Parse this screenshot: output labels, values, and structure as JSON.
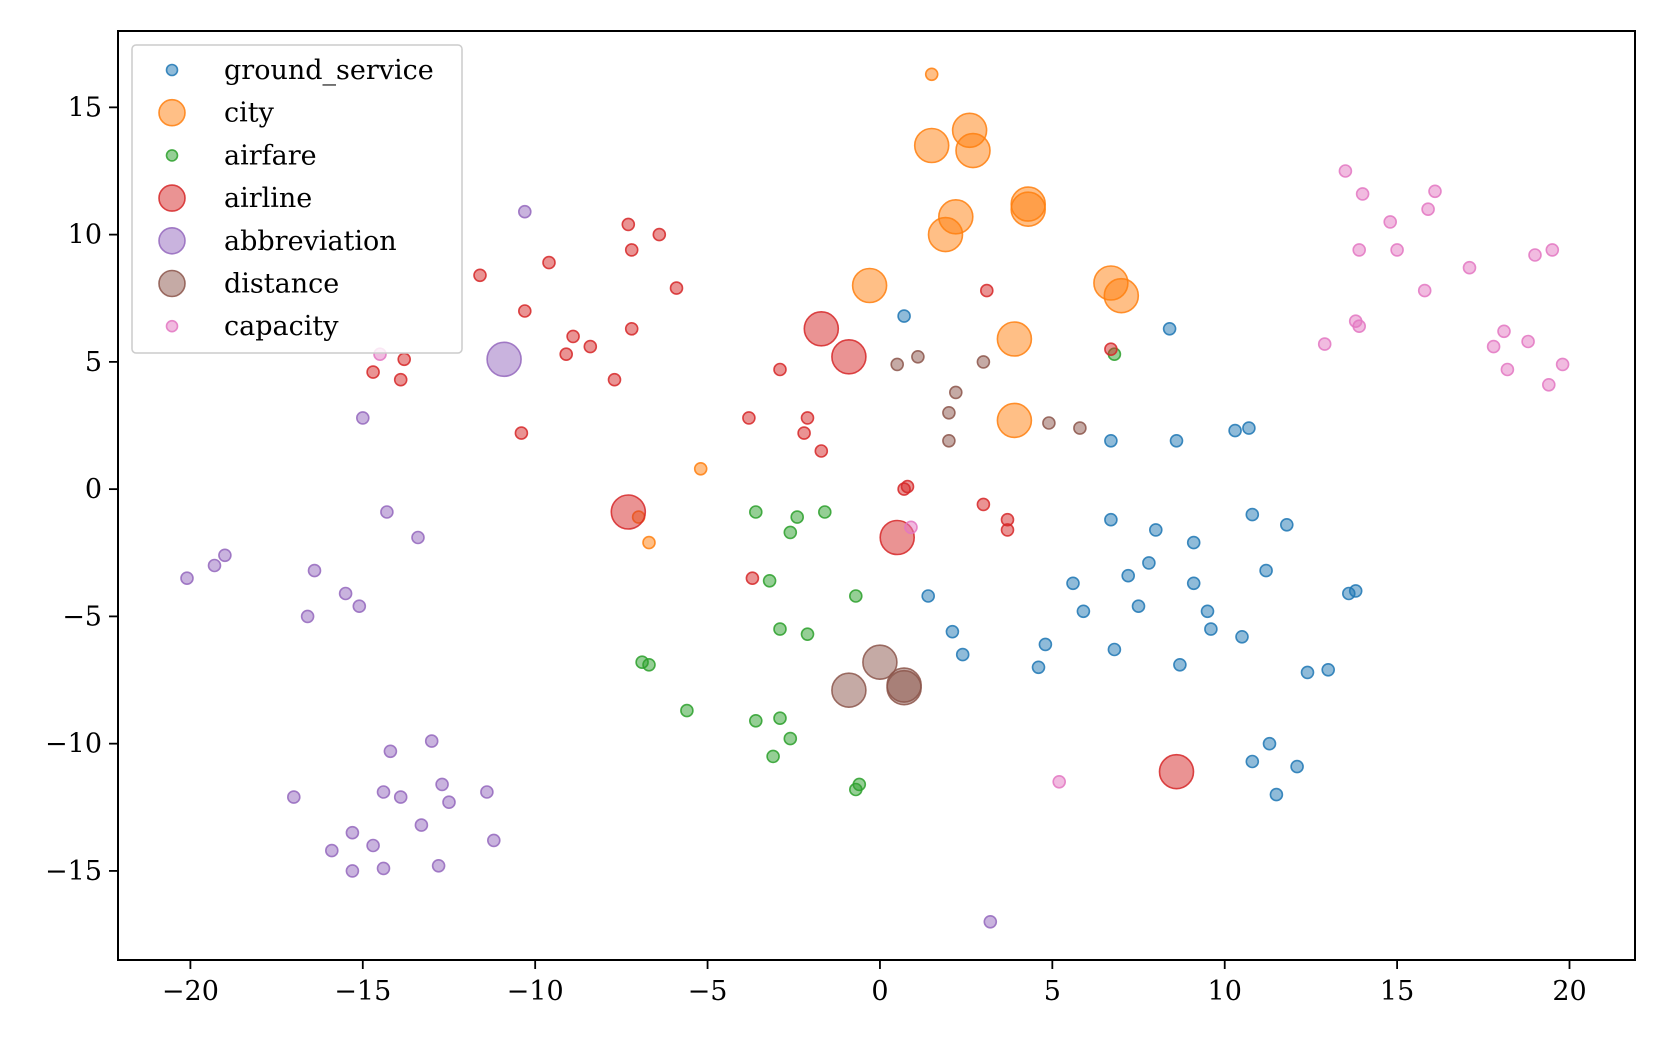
{
  "chart_data": {
    "type": "scatter",
    "xlim": [
      -22.1,
      21.9
    ],
    "ylim": [
      -18.5,
      18.0
    ],
    "x_ticks": [
      -20,
      -15,
      -10,
      -5,
      0,
      5,
      10,
      15,
      20
    ],
    "y_ticks": [
      -15,
      -10,
      -5,
      0,
      5,
      10,
      15
    ],
    "x_tick_labels": [
      "−20",
      "−15",
      "−10",
      "−5",
      "0",
      "5",
      "10",
      "15",
      "20"
    ],
    "y_tick_labels": [
      "−15",
      "−10",
      "−5",
      "0",
      "5",
      "10",
      "15"
    ],
    "grid": false,
    "legend_position": "top-left",
    "series": [
      {
        "name": "ground_service",
        "color": "#1f77b4",
        "points": [
          [
            0.7,
            6.8
          ],
          [
            8.4,
            6.3
          ],
          [
            6.7,
            1.9
          ],
          [
            8.6,
            1.9
          ],
          [
            10.3,
            2.3
          ],
          [
            10.7,
            2.4
          ],
          [
            6.7,
            -1.2
          ],
          [
            8.0,
            -1.6
          ],
          [
            10.8,
            -1.0
          ],
          [
            11.8,
            -1.4
          ],
          [
            9.1,
            -2.1
          ],
          [
            7.8,
            -2.9
          ],
          [
            7.2,
            -3.4
          ],
          [
            11.2,
            -3.2
          ],
          [
            5.6,
            -3.7
          ],
          [
            9.1,
            -3.7
          ],
          [
            13.6,
            -4.1
          ],
          [
            13.8,
            -4.0
          ],
          [
            1.4,
            -4.2
          ],
          [
            5.9,
            -4.8
          ],
          [
            7.5,
            -4.6
          ],
          [
            9.5,
            -4.8
          ],
          [
            9.6,
            -5.5
          ],
          [
            10.5,
            -5.8
          ],
          [
            2.1,
            -5.6
          ],
          [
            4.8,
            -6.1
          ],
          [
            2.4,
            -6.5
          ],
          [
            6.8,
            -6.3
          ],
          [
            4.6,
            -7.0
          ],
          [
            8.7,
            -6.9
          ],
          [
            12.4,
            -7.2
          ],
          [
            13.0,
            -7.1
          ],
          [
            11.3,
            -10.0
          ],
          [
            10.8,
            -10.7
          ],
          [
            12.1,
            -10.9
          ],
          [
            11.5,
            -12.0
          ]
        ]
      },
      {
        "name": "city",
        "color": "#ff7f0e",
        "points": [
          [
            1.5,
            16.3
          ],
          [
            -5.2,
            0.8
          ],
          [
            -7.0,
            -1.1
          ],
          [
            -6.7,
            -2.1
          ]
        ],
        "large_points": [
          [
            2.6,
            14.1
          ],
          [
            1.5,
            13.5
          ],
          [
            2.7,
            13.3
          ],
          [
            4.3,
            11.2
          ],
          [
            4.3,
            11.0
          ],
          [
            2.2,
            10.7
          ],
          [
            1.9,
            10.0
          ],
          [
            -0.3,
            8.0
          ],
          [
            6.7,
            8.1
          ],
          [
            7.0,
            7.6
          ],
          [
            3.9,
            5.9
          ],
          [
            3.9,
            2.7
          ]
        ]
      },
      {
        "name": "airfare",
        "color": "#2ca02c",
        "points": [
          [
            6.8,
            5.3
          ],
          [
            -3.6,
            -0.9
          ],
          [
            -2.4,
            -1.1
          ],
          [
            -1.6,
            -0.9
          ],
          [
            -2.6,
            -1.7
          ],
          [
            -3.2,
            -3.6
          ],
          [
            -0.7,
            -4.2
          ],
          [
            -2.9,
            -5.5
          ],
          [
            -2.1,
            -5.7
          ],
          [
            -6.9,
            -6.8
          ],
          [
            -6.7,
            -6.9
          ],
          [
            -5.6,
            -8.7
          ],
          [
            -3.6,
            -9.1
          ],
          [
            -2.9,
            -9.0
          ],
          [
            -2.6,
            -9.8
          ],
          [
            -3.1,
            -10.5
          ],
          [
            -0.6,
            -11.6
          ],
          [
            -0.7,
            -11.8
          ]
        ]
      },
      {
        "name": "airline",
        "color": "#d62728",
        "points": [
          [
            -7.3,
            10.4
          ],
          [
            -6.4,
            10.0
          ],
          [
            -7.2,
            9.4
          ],
          [
            -9.6,
            8.9
          ],
          [
            -11.6,
            8.4
          ],
          [
            -5.9,
            7.9
          ],
          [
            3.1,
            7.8
          ],
          [
            -10.3,
            7.0
          ],
          [
            -8.9,
            6.0
          ],
          [
            -7.2,
            6.3
          ],
          [
            -8.4,
            5.6
          ],
          [
            -9.1,
            5.3
          ],
          [
            6.7,
            5.5
          ],
          [
            -13.8,
            5.1
          ],
          [
            -14.7,
            4.6
          ],
          [
            -13.9,
            4.3
          ],
          [
            -2.9,
            4.7
          ],
          [
            -7.7,
            4.3
          ],
          [
            -3.8,
            2.8
          ],
          [
            -2.1,
            2.8
          ],
          [
            -2.2,
            2.2
          ],
          [
            -10.4,
            2.2
          ],
          [
            -1.7,
            1.5
          ],
          [
            0.8,
            0.1
          ],
          [
            0.7,
            0.0
          ],
          [
            3.0,
            -0.6
          ],
          [
            3.7,
            -1.2
          ],
          [
            3.7,
            -1.6
          ],
          [
            -3.7,
            -3.5
          ]
        ],
        "large_points": [
          [
            -1.7,
            6.3
          ],
          [
            -0.9,
            5.2
          ],
          [
            -7.3,
            -0.9
          ],
          [
            0.5,
            -1.9
          ],
          [
            8.6,
            -11.1
          ]
        ]
      },
      {
        "name": "abbreviation",
        "color": "#9467bd",
        "points": [
          [
            -10.3,
            10.9
          ],
          [
            -15.0,
            2.8
          ],
          [
            -14.3,
            -0.9
          ],
          [
            -13.4,
            -1.9
          ],
          [
            -19.0,
            -2.6
          ],
          [
            -19.3,
            -3.0
          ],
          [
            -20.1,
            -3.5
          ],
          [
            -16.4,
            -3.2
          ],
          [
            -15.5,
            -4.1
          ],
          [
            -15.1,
            -4.6
          ],
          [
            -16.6,
            -5.0
          ],
          [
            -13.0,
            -9.9
          ],
          [
            -14.2,
            -10.3
          ],
          [
            -17.0,
            -12.1
          ],
          [
            -14.4,
            -11.9
          ],
          [
            -13.9,
            -12.1
          ],
          [
            -12.7,
            -11.6
          ],
          [
            -12.5,
            -12.3
          ],
          [
            -11.4,
            -11.9
          ],
          [
            -13.3,
            -13.2
          ],
          [
            -15.3,
            -13.5
          ],
          [
            -15.9,
            -14.2
          ],
          [
            -14.7,
            -14.0
          ],
          [
            -11.2,
            -13.8
          ],
          [
            -12.8,
            -14.8
          ],
          [
            -14.4,
            -14.9
          ],
          [
            -15.3,
            -15.0
          ],
          [
            3.2,
            -17.0
          ]
        ],
        "large_points": [
          [
            -10.9,
            5.1
          ]
        ]
      },
      {
        "name": "distance",
        "color": "#8c564b",
        "points": [
          [
            1.1,
            5.2
          ],
          [
            0.5,
            4.9
          ],
          [
            3.0,
            5.0
          ],
          [
            2.2,
            3.8
          ],
          [
            2.0,
            3.0
          ],
          [
            4.9,
            2.6
          ],
          [
            5.8,
            2.4
          ],
          [
            2.0,
            1.9
          ]
        ],
        "large_points": [
          [
            0.0,
            -6.8
          ],
          [
            -0.9,
            -7.9
          ],
          [
            0.7,
            -7.7
          ],
          [
            0.7,
            -7.8
          ]
        ]
      },
      {
        "name": "capacity",
        "color": "#e377c2",
        "points": [
          [
            -14.5,
            5.3
          ],
          [
            0.9,
            -1.5
          ],
          [
            5.2,
            -11.5
          ],
          [
            13.5,
            12.5
          ],
          [
            14.0,
            11.6
          ],
          [
            16.1,
            11.7
          ],
          [
            15.9,
            11.0
          ],
          [
            14.8,
            10.5
          ],
          [
            15.0,
            9.4
          ],
          [
            13.9,
            9.4
          ],
          [
            17.1,
            8.7
          ],
          [
            19.0,
            9.2
          ],
          [
            19.5,
            9.4
          ],
          [
            15.8,
            7.8
          ],
          [
            13.8,
            6.6
          ],
          [
            13.9,
            6.4
          ],
          [
            12.9,
            5.7
          ],
          [
            17.8,
            5.6
          ],
          [
            18.1,
            6.2
          ],
          [
            18.8,
            5.8
          ],
          [
            18.2,
            4.7
          ],
          [
            19.8,
            4.9
          ],
          [
            19.4,
            4.1
          ]
        ]
      }
    ]
  }
}
